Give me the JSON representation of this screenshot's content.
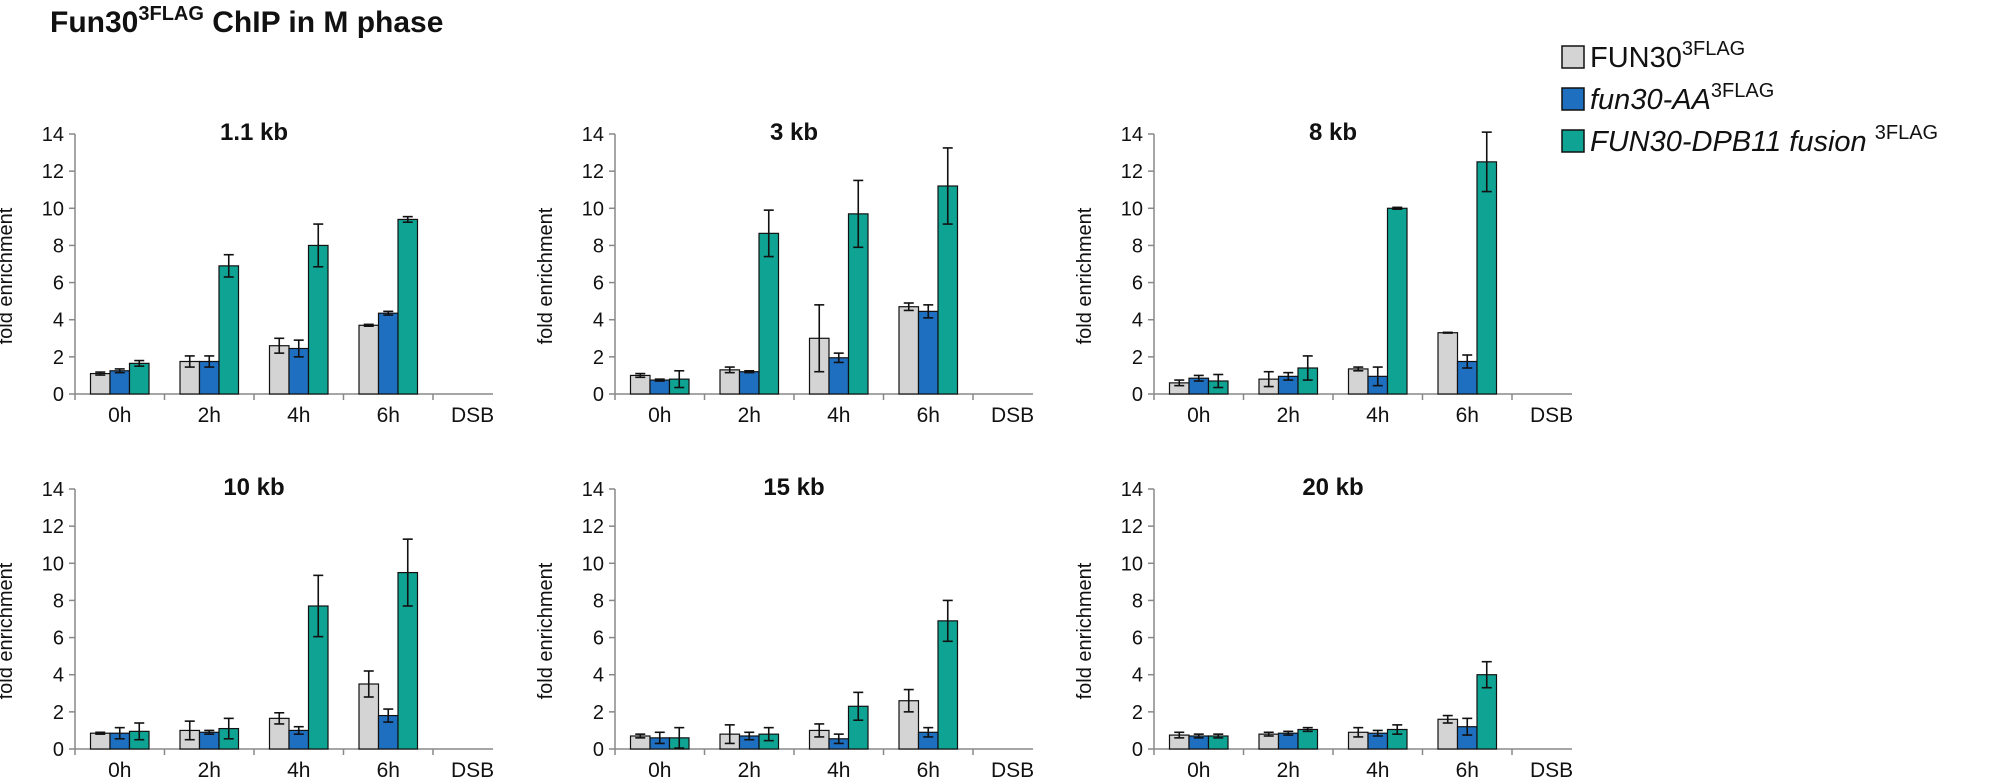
{
  "figure": {
    "title": "Fun30",
    "title_sup": "3FLAG",
    "title_rest": " ChIP in M phase"
  },
  "legend": [
    {
      "name": "FUN30",
      "sup": "3FLAG",
      "italic": false,
      "color": "#d4d4d4"
    },
    {
      "name": "fun30-AA",
      "sup": "3FLAG",
      "italic": true,
      "color": "#1f6fc0"
    },
    {
      "name": "FUN30-DPB11 fusion ",
      "sup": "3FLAG",
      "italic": true,
      "color": "#0fa393"
    }
  ],
  "chart_data": [
    {
      "type": "bar",
      "title": "1.1 kb",
      "categories": [
        "0h",
        "2h",
        "4h",
        "6h"
      ],
      "xlabel": "DSB",
      "ylabel": "fold enrichment",
      "ylim": [
        0,
        14
      ],
      "yticks": [
        0,
        2,
        4,
        6,
        8,
        10,
        12,
        14
      ],
      "series": [
        {
          "name": "FUN30 3FLAG",
          "values": [
            1.1,
            1.75,
            2.6,
            3.7
          ],
          "errors": [
            0.08,
            0.3,
            0.4,
            0.05
          ]
        },
        {
          "name": "fun30-AA 3FLAG",
          "values": [
            1.25,
            1.75,
            2.45,
            4.35
          ],
          "errors": [
            0.1,
            0.3,
            0.45,
            0.1
          ]
        },
        {
          "name": "FUN30-DPB11 fusion 3FLAG",
          "values": [
            1.65,
            6.9,
            8.0,
            9.4
          ],
          "errors": [
            0.15,
            0.6,
            1.15,
            0.15
          ]
        }
      ]
    },
    {
      "type": "bar",
      "title": "3 kb",
      "categories": [
        "0h",
        "2h",
        "4h",
        "6h"
      ],
      "xlabel": "DSB",
      "ylabel": "fold enrichment",
      "ylim": [
        0,
        14
      ],
      "yticks": [
        0,
        2,
        4,
        6,
        8,
        10,
        12,
        14
      ],
      "series": [
        {
          "name": "FUN30 3FLAG",
          "values": [
            1.0,
            1.3,
            3.0,
            4.7
          ],
          "errors": [
            0.1,
            0.15,
            1.8,
            0.2
          ]
        },
        {
          "name": "fun30-AA 3FLAG",
          "values": [
            0.75,
            1.2,
            1.95,
            4.45
          ],
          "errors": [
            0.05,
            0.05,
            0.25,
            0.35
          ]
        },
        {
          "name": "FUN30-DPB11 fusion 3FLAG",
          "values": [
            0.8,
            8.65,
            9.7,
            11.2
          ],
          "errors": [
            0.45,
            1.25,
            1.8,
            2.05
          ]
        }
      ]
    },
    {
      "type": "bar",
      "title": "8 kb",
      "categories": [
        "0h",
        "2h",
        "4h",
        "6h"
      ],
      "xlabel": "DSB",
      "ylabel": "fold enrichment",
      "ylim": [
        0,
        14
      ],
      "yticks": [
        0,
        2,
        4,
        6,
        8,
        10,
        12,
        14
      ],
      "series": [
        {
          "name": "FUN30 3FLAG",
          "values": [
            0.6,
            0.8,
            1.35,
            3.3
          ],
          "errors": [
            0.15,
            0.4,
            0.1,
            0.02
          ]
        },
        {
          "name": "fun30-AA 3FLAG",
          "values": [
            0.85,
            0.95,
            0.95,
            1.75
          ],
          "errors": [
            0.15,
            0.2,
            0.5,
            0.35
          ]
        },
        {
          "name": "FUN30-DPB11 fusion 3FLAG",
          "values": [
            0.7,
            1.4,
            10.0,
            12.5
          ],
          "errors": [
            0.35,
            0.65,
            0.05,
            1.6
          ]
        }
      ]
    },
    {
      "type": "bar",
      "title": "10 kb",
      "categories": [
        "0h",
        "2h",
        "4h",
        "6h"
      ],
      "xlabel": "DSB",
      "ylabel": "fold enrichment",
      "ylim": [
        0,
        14
      ],
      "yticks": [
        0,
        2,
        4,
        6,
        8,
        10,
        12,
        14
      ],
      "series": [
        {
          "name": "FUN30 3FLAG",
          "values": [
            0.85,
            1.0,
            1.65,
            3.5
          ],
          "errors": [
            0.05,
            0.5,
            0.3,
            0.7
          ]
        },
        {
          "name": "fun30-AA 3FLAG",
          "values": [
            0.85,
            0.9,
            1.0,
            1.8
          ],
          "errors": [
            0.3,
            0.1,
            0.2,
            0.35
          ]
        },
        {
          "name": "FUN30-DPB11 fusion 3FLAG",
          "values": [
            0.95,
            1.1,
            7.7,
            9.5
          ],
          "errors": [
            0.45,
            0.55,
            1.65,
            1.8
          ]
        }
      ]
    },
    {
      "type": "bar",
      "title": "15 kb",
      "categories": [
        "0h",
        "2h",
        "4h",
        "6h"
      ],
      "xlabel": "DSB",
      "ylabel": "fold enrichment",
      "ylim": [
        0,
        14
      ],
      "yticks": [
        0,
        2,
        4,
        6,
        8,
        10,
        12,
        14
      ],
      "series": [
        {
          "name": "FUN30 3FLAG",
          "values": [
            0.7,
            0.8,
            1.0,
            2.6
          ],
          "errors": [
            0.1,
            0.5,
            0.35,
            0.6
          ]
        },
        {
          "name": "fun30-AA 3FLAG",
          "values": [
            0.6,
            0.7,
            0.55,
            0.9
          ],
          "errors": [
            0.3,
            0.2,
            0.25,
            0.25
          ]
        },
        {
          "name": "FUN30-DPB11 fusion 3FLAG",
          "values": [
            0.6,
            0.8,
            2.3,
            6.9
          ],
          "errors": [
            0.55,
            0.35,
            0.75,
            1.1
          ]
        }
      ]
    },
    {
      "type": "bar",
      "title": "20 kb",
      "categories": [
        "0h",
        "2h",
        "4h",
        "6h"
      ],
      "xlabel": "DSB",
      "ylabel": "fold enrichment",
      "ylim": [
        0,
        14
      ],
      "yticks": [
        0,
        2,
        4,
        6,
        8,
        10,
        12,
        14
      ],
      "series": [
        {
          "name": "FUN30 3FLAG",
          "values": [
            0.75,
            0.8,
            0.9,
            1.6
          ],
          "errors": [
            0.15,
            0.1,
            0.25,
            0.2
          ]
        },
        {
          "name": "fun30-AA 3FLAG",
          "values": [
            0.7,
            0.85,
            0.85,
            1.2
          ],
          "errors": [
            0.1,
            0.1,
            0.15,
            0.45
          ]
        },
        {
          "name": "FUN30-DPB11 fusion 3FLAG",
          "values": [
            0.7,
            1.05,
            1.05,
            4.0
          ],
          "errors": [
            0.1,
            0.1,
            0.25,
            0.7
          ]
        }
      ]
    }
  ]
}
